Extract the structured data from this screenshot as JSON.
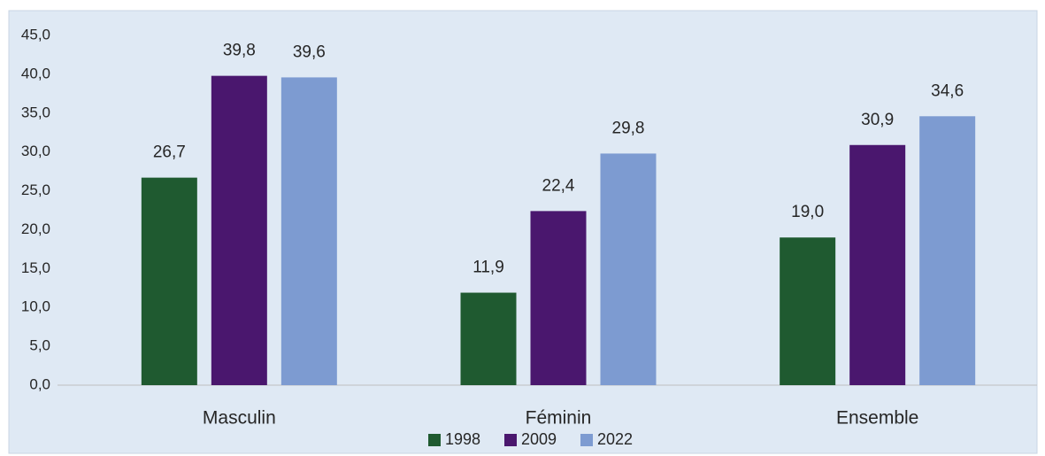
{
  "chart_data": {
    "type": "bar",
    "categories": [
      "Masculin",
      "Féminin",
      "Ensemble"
    ],
    "series": [
      {
        "name": "1998",
        "color": "#1f5a30",
        "values": [
          26.7,
          11.9,
          19.0
        ],
        "value_labels": [
          "26,7",
          "11,9",
          "19,0"
        ]
      },
      {
        "name": "2009",
        "color": "#4a176e",
        "values": [
          39.8,
          22.4,
          30.9
        ],
        "value_labels": [
          "39,8",
          "22,4",
          "30,9"
        ]
      },
      {
        "name": "2022",
        "color": "#7d9bd1",
        "values": [
          39.6,
          29.8,
          34.6
        ],
        "value_labels": [
          "39,6",
          "29,8",
          "34,6"
        ]
      }
    ],
    "ylim": [
      0,
      45
    ],
    "yticks": [
      {
        "value": 0,
        "label": "0,0"
      },
      {
        "value": 5,
        "label": "5,0"
      },
      {
        "value": 10,
        "label": "10,0"
      },
      {
        "value": 15,
        "label": "15,0"
      },
      {
        "value": 20,
        "label": "20,0"
      },
      {
        "value": 25,
        "label": "25,0"
      },
      {
        "value": 30,
        "label": "30,0"
      },
      {
        "value": 35,
        "label": "35,0"
      },
      {
        "value": 40,
        "label": "40,0"
      },
      {
        "value": 45,
        "label": "45,0"
      }
    ],
    "grid": false,
    "legend": "bottom"
  }
}
